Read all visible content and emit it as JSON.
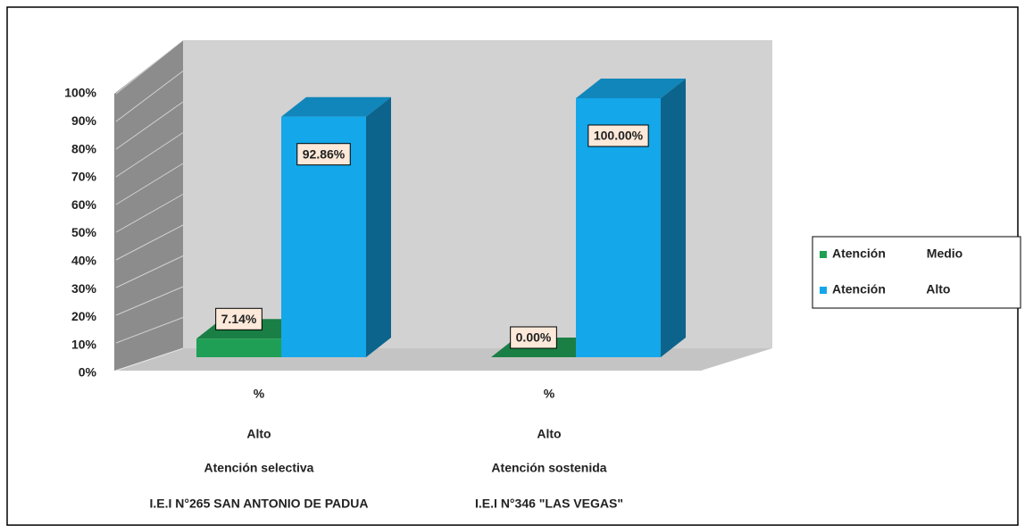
{
  "chart_data": {
    "type": "bar3d",
    "categories": [
      [
        "%",
        "Alto",
        "Atención selectiva",
        "I.E.I N°265 SAN ANTONIO DE PADUA"
      ],
      [
        "%",
        "Alto",
        "Atención sostenida",
        "I.E.I N°346 \"LAS VEGAS\""
      ]
    ],
    "series": [
      {
        "name": "Atención Medio",
        "color": "#1f9f55",
        "values": [
          7.14,
          0.0
        ],
        "value_labels": [
          "7.14%",
          "0.00%"
        ]
      },
      {
        "name": "Atención Alto",
        "color": "#14a7ea",
        "values": [
          92.86,
          100.0
        ],
        "value_labels": [
          "92.86%",
          "100.00%"
        ]
      }
    ],
    "ylim": [
      0,
      100
    ],
    "yticks": [
      {
        "value": 0,
        "label": "0%"
      },
      {
        "value": 10,
        "label": "10%"
      },
      {
        "value": 20,
        "label": "20%"
      },
      {
        "value": 30,
        "label": "30%"
      },
      {
        "value": 40,
        "label": "40%"
      },
      {
        "value": 50,
        "label": "50%"
      },
      {
        "value": 60,
        "label": "60%"
      },
      {
        "value": 70,
        "label": "70%"
      },
      {
        "value": 80,
        "label": "80%"
      },
      {
        "value": 90,
        "label": "90%"
      },
      {
        "value": 100,
        "label": "100%"
      }
    ],
    "legend": "right"
  }
}
